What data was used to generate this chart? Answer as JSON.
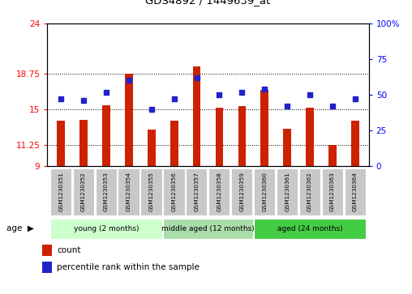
{
  "title": "GDS4892 / 1449639_at",
  "samples": [
    "GSM1230351",
    "GSM1230352",
    "GSM1230353",
    "GSM1230354",
    "GSM1230355",
    "GSM1230356",
    "GSM1230357",
    "GSM1230358",
    "GSM1230359",
    "GSM1230360",
    "GSM1230361",
    "GSM1230362",
    "GSM1230363",
    "GSM1230364"
  ],
  "bar_values": [
    13.8,
    13.9,
    15.4,
    18.75,
    12.8,
    13.8,
    19.5,
    15.1,
    15.3,
    17.0,
    12.9,
    15.1,
    11.25,
    13.8
  ],
  "percentile_values": [
    47,
    46,
    52,
    60,
    40,
    47,
    62,
    50,
    52,
    54,
    42,
    50,
    42,
    47
  ],
  "y_min": 9,
  "y_max": 24,
  "y_ticks": [
    9,
    11.25,
    15,
    18.75,
    24
  ],
  "y_right_ticks": [
    0,
    25,
    50,
    75,
    100
  ],
  "bar_color": "#cc2200",
  "marker_color": "#2222cc",
  "group_data": [
    {
      "label": "young (2 months)",
      "start": 0,
      "end": 4,
      "color": "#ccffcc"
    },
    {
      "label": "middle aged (12 months)",
      "start": 5,
      "end": 8,
      "color": "#aaddaa"
    },
    {
      "label": "aged (24 months)",
      "start": 9,
      "end": 13,
      "color": "#44cc44"
    }
  ],
  "legend_count": "count",
  "legend_pct": "percentile rank within the sample"
}
